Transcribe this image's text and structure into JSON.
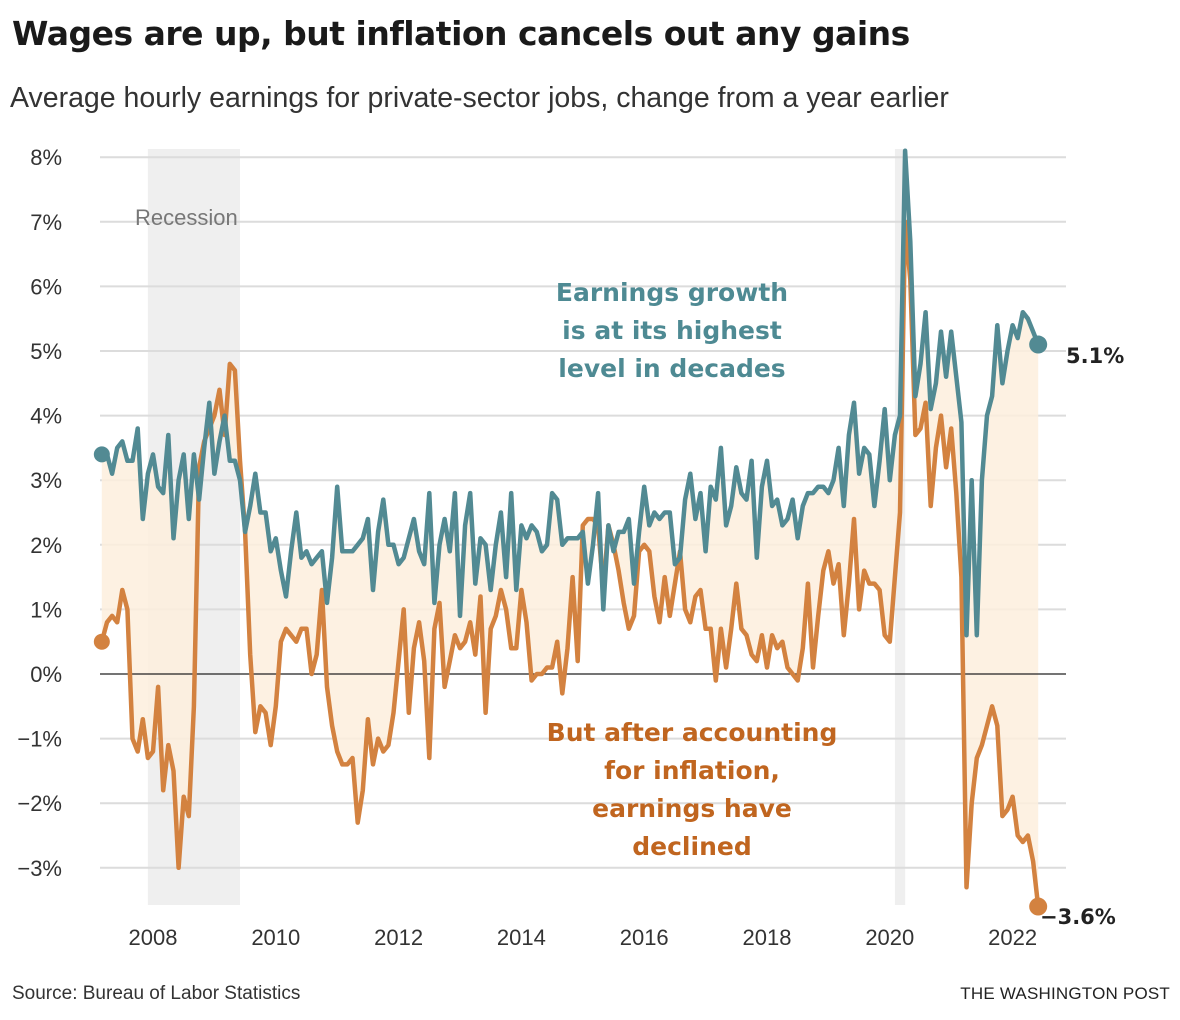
{
  "title": "Wages are up, but inflation cancels out any gains",
  "subtitle": "Average hourly earnings for private-sector jobs, change from a year earlier",
  "source": "Source: Bureau of Labor Statistics",
  "credit": "THE WASHINGTON POST",
  "chart_data": {
    "type": "line",
    "frequency": "monthly",
    "start_month": "2007-03",
    "ylim": [
      -3.6,
      8.1
    ],
    "yticks": [
      8,
      7,
      6,
      5,
      4,
      3,
      2,
      1,
      0,
      -1,
      -2,
      -3
    ],
    "ytick_labels": [
      "8%",
      "7%",
      "6%",
      "5%",
      "4%",
      "3%",
      "2%",
      "1%",
      "0%",
      "−1%",
      "−2%",
      "−3%"
    ],
    "xticks": [
      2008,
      2010,
      2012,
      2014,
      2016,
      2018,
      2020,
      2022
    ],
    "xtick_labels": [
      "2008",
      "2010",
      "2012",
      "2014",
      "2016",
      "2018",
      "2020",
      "2022"
    ],
    "grid": true,
    "shaded_periods": [
      {
        "label": "Recession",
        "start": "2007-12",
        "end": "2009-06"
      },
      {
        "label": "",
        "start": "2020-02",
        "end": "2020-04"
      }
    ],
    "colors": {
      "earnings": "#528a93",
      "real": "#d38240",
      "fill": "#fdeedd",
      "recession": "#efefef"
    },
    "series": [
      {
        "key": "earnings",
        "values": [
          3.4,
          3.4,
          3.1,
          3.5,
          3.6,
          3.3,
          3.3,
          3.8,
          2.4,
          3.1,
          3.4,
          2.9,
          2.8,
          3.7,
          2.1,
          3.0,
          3.4,
          2.4,
          3.4,
          2.7,
          3.5,
          4.2,
          3.1,
          3.6,
          4.0,
          3.3,
          3.3,
          3.0,
          2.2,
          2.6,
          3.1,
          2.5,
          2.5,
          1.9,
          2.1,
          1.6,
          1.2,
          1.9,
          2.5,
          1.8,
          1.9,
          1.7,
          1.8,
          1.9,
          1.1,
          1.8,
          2.9,
          1.9,
          1.9,
          1.9,
          2.0,
          2.1,
          2.4,
          1.3,
          2.2,
          2.7,
          2.0,
          2.0,
          1.7,
          1.8,
          2.1,
          2.4,
          1.9,
          1.7,
          2.8,
          1.1,
          2.0,
          2.4,
          1.9,
          2.8,
          0.9,
          2.3,
          2.8,
          1.4,
          2.1,
          2.0,
          1.3,
          2.0,
          2.5,
          1.5,
          2.8,
          1.3,
          2.3,
          2.1,
          2.3,
          2.2,
          1.9,
          2.0,
          2.8,
          2.7,
          2.0,
          2.1,
          2.1,
          2.1,
          2.2,
          1.4,
          2.0,
          2.8,
          1.0,
          2.3,
          1.9,
          2.2,
          2.2,
          2.4,
          1.4,
          2.2,
          2.9,
          2.3,
          2.5,
          2.4,
          2.5,
          2.5,
          1.7,
          1.8,
          2.7,
          3.1,
          2.4,
          2.8,
          1.9,
          2.9,
          2.7,
          3.5,
          2.3,
          2.6,
          3.2,
          2.8,
          2.7,
          3.3,
          1.8,
          2.9,
          3.3,
          2.6,
          2.7,
          2.3,
          2.4,
          2.7,
          2.1,
          2.6,
          2.8,
          2.8,
          2.9,
          2.9,
          2.8,
          3.0,
          3.5,
          2.6,
          3.7,
          4.2,
          3.1,
          3.5,
          3.4,
          2.6,
          3.3,
          4.1,
          3.0,
          3.7,
          4.0,
          8.1,
          6.7,
          4.3,
          4.8,
          5.6,
          4.1,
          4.5,
          5.3,
          4.6,
          5.3,
          4.6,
          3.9,
          0.6,
          3.0,
          0.6,
          3.0,
          4.0,
          4.3,
          5.4,
          4.5,
          5.0,
          5.4,
          5.2,
          5.6,
          5.5,
          5.3,
          5.1
        ]
      },
      {
        "key": "real",
        "values": [
          0.5,
          0.8,
          0.9,
          0.8,
          1.3,
          1.0,
          -1.0,
          -1.2,
          -0.7,
          -1.3,
          -1.2,
          -0.2,
          -1.8,
          -1.1,
          -1.5,
          -3.0,
          -1.9,
          -2.2,
          -0.5,
          3.2,
          3.6,
          3.8,
          4.0,
          4.4,
          3.7,
          4.8,
          4.7,
          3.3,
          2.2,
          0.3,
          -0.9,
          -0.5,
          -0.6,
          -1.1,
          -0.5,
          0.5,
          0.7,
          0.6,
          0.5,
          0.7,
          0.7,
          0.0,
          0.3,
          1.3,
          -0.2,
          -0.8,
          -1.2,
          -1.4,
          -1.4,
          -1.3,
          -2.3,
          -1.8,
          -0.7,
          -1.4,
          -1.0,
          -1.2,
          -1.1,
          -0.6,
          0.2,
          1.0,
          -0.6,
          0.4,
          0.8,
          0.2,
          -1.3,
          0.7,
          1.1,
          -0.2,
          0.2,
          0.6,
          0.4,
          0.5,
          0.8,
          0.3,
          1.2,
          -0.6,
          0.7,
          0.9,
          1.3,
          1.0,
          0.4,
          0.4,
          1.3,
          0.8,
          -0.1,
          0.0,
          0.0,
          0.1,
          0.1,
          0.5,
          -0.3,
          0.4,
          1.5,
          0.2,
          2.3,
          2.4,
          2.4,
          2.3,
          1.3,
          2.3,
          2.0,
          1.6,
          1.1,
          0.7,
          0.9,
          1.9,
          2.0,
          1.9,
          1.2,
          0.8,
          1.5,
          0.9,
          1.4,
          1.9,
          1.0,
          0.8,
          1.2,
          1.3,
          0.7,
          0.7,
          -0.1,
          0.7,
          0.1,
          0.7,
          1.4,
          0.7,
          0.6,
          0.3,
          0.2,
          0.6,
          0.1,
          0.6,
          0.4,
          0.5,
          0.1,
          0.0,
          -0.1,
          0.4,
          1.4,
          0.1,
          0.9,
          1.6,
          1.9,
          1.4,
          1.7,
          0.6,
          1.4,
          2.4,
          1.0,
          1.6,
          1.4,
          1.4,
          1.3,
          0.6,
          0.5,
          1.5,
          2.5,
          7.0,
          6.1,
          3.7,
          3.8,
          4.2,
          2.6,
          3.5,
          4.0,
          3.2,
          3.8,
          2.8,
          1.5,
          -3.3,
          -2.0,
          -1.3,
          -1.1,
          -0.8,
          -0.5,
          -0.8,
          -2.2,
          -2.1,
          -1.9,
          -2.5,
          -2.6,
          -2.5,
          -2.9,
          -3.6
        ]
      }
    ],
    "annotations": {
      "recession": "Recession",
      "earnings": [
        "Earnings growth",
        "is at its highest",
        "level in decades"
      ],
      "real": [
        "But after accounting",
        "for inflation,",
        "earnings have",
        "declined"
      ]
    },
    "end_labels": {
      "earnings": "5.1%",
      "real": "−3.6%"
    }
  }
}
